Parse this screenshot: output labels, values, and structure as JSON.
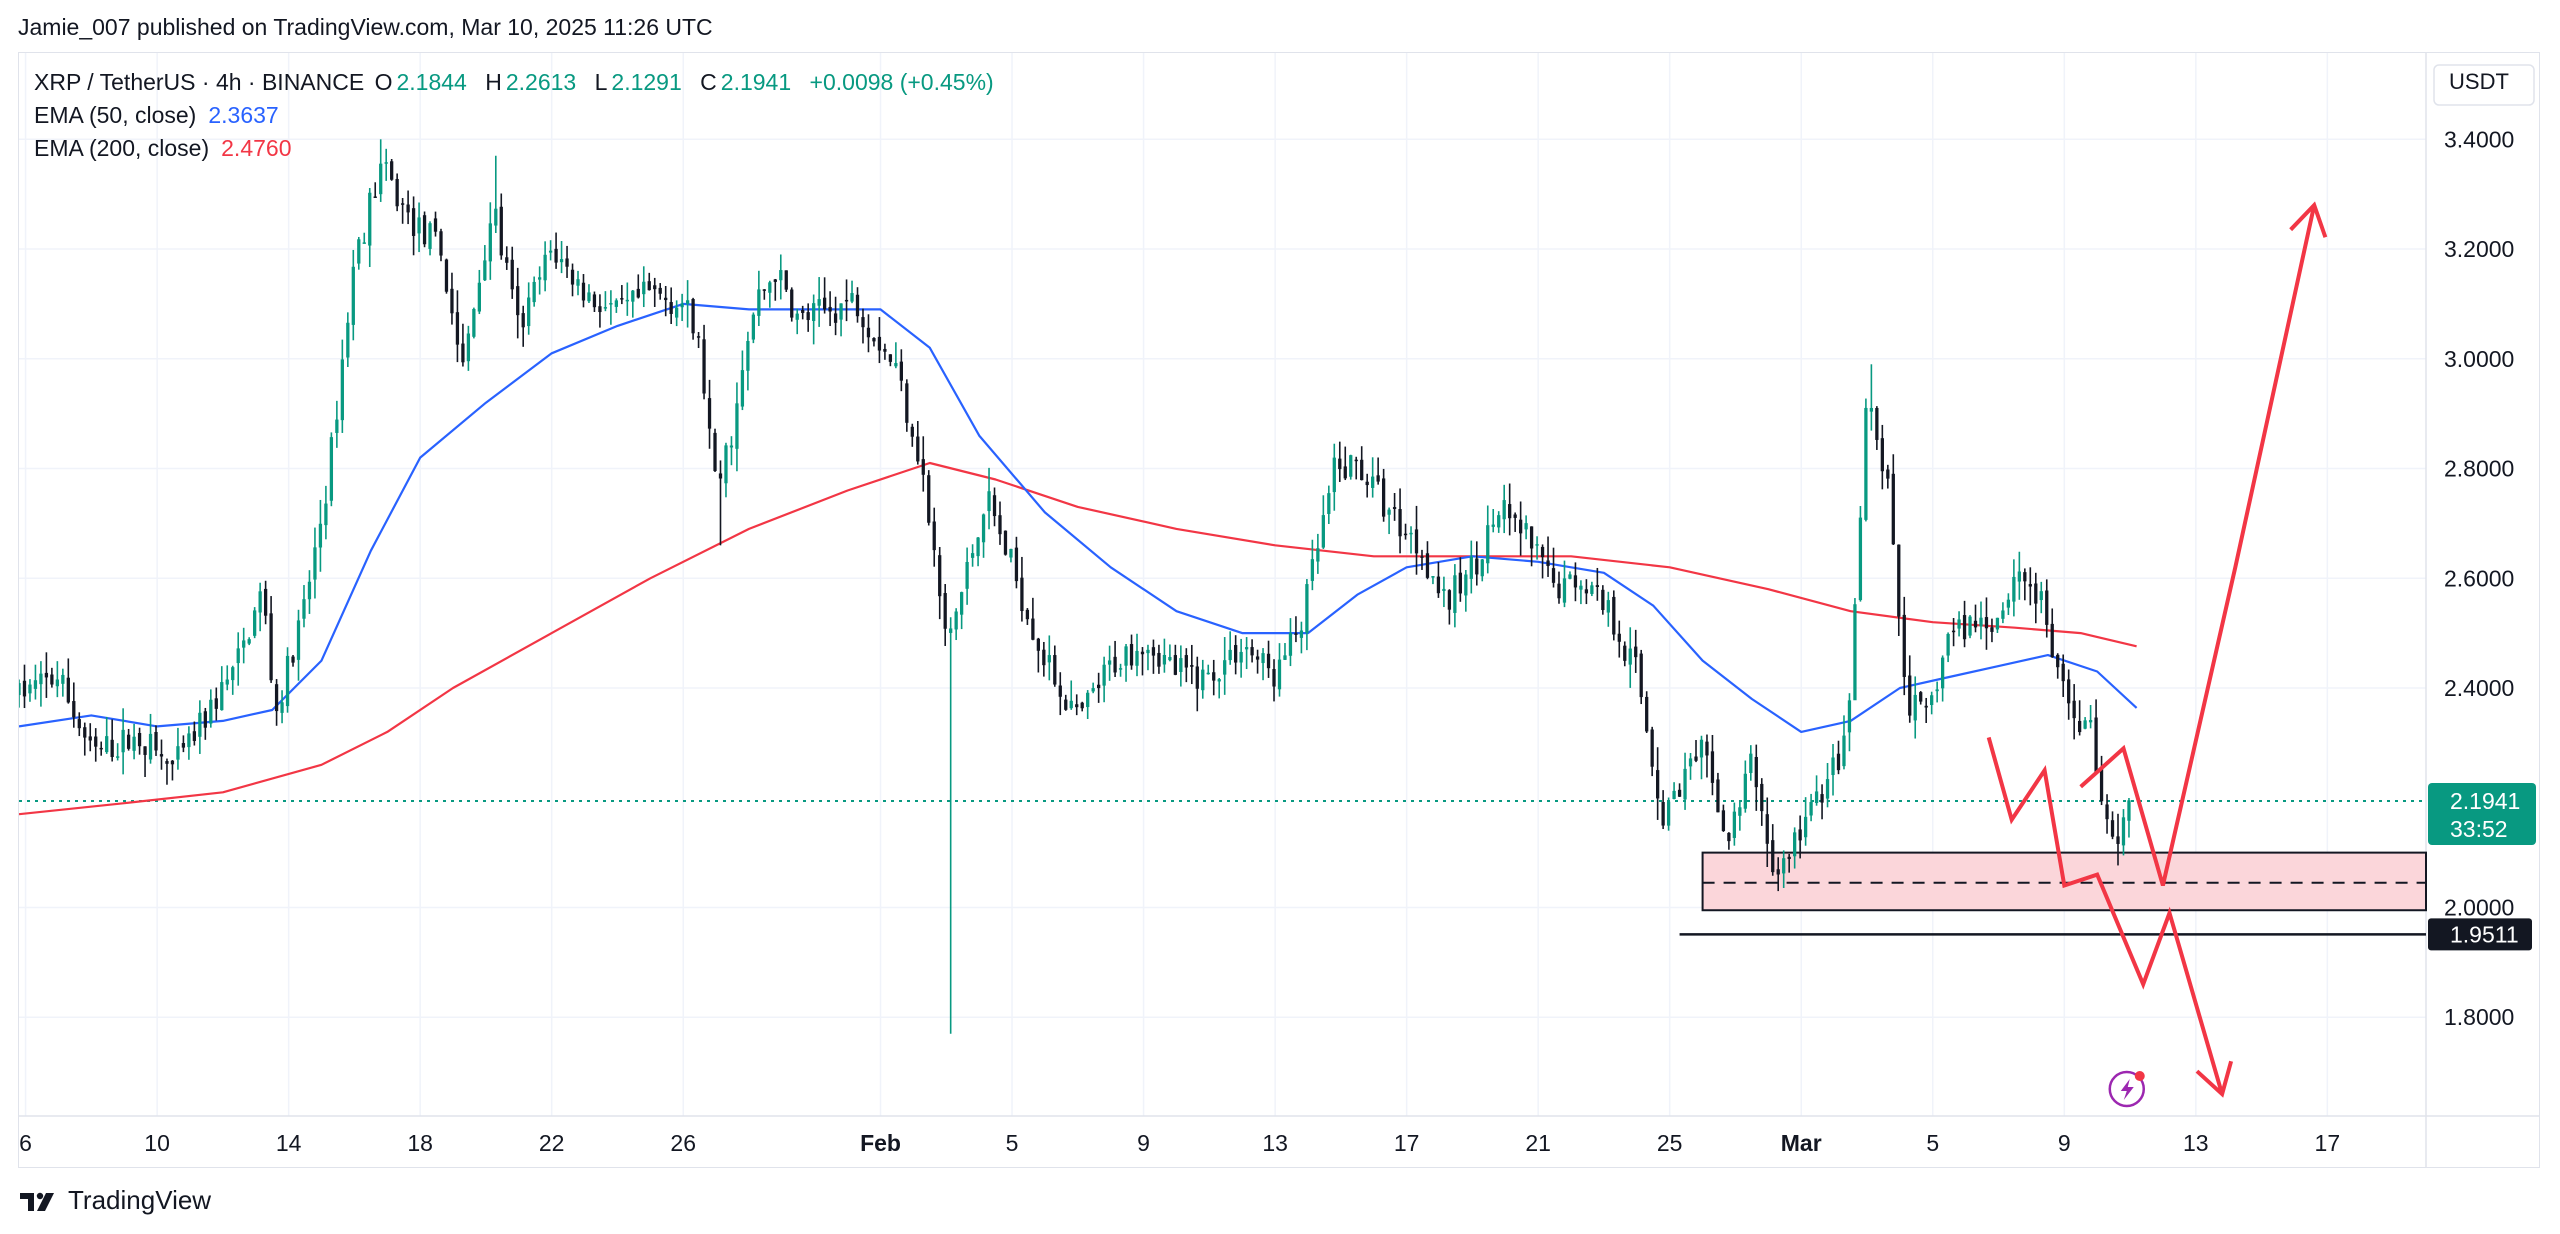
{
  "publisher_line": "Jamie_007 published on TradingView.com, Mar 10, 2025 11:26 UTC",
  "symbol": {
    "name": "XRP / TetherUS · 4h · BINANCE",
    "o_label": "O",
    "o": "2.1844",
    "h_label": "H",
    "h": "2.2613",
    "l_label": "L",
    "l": "2.1291",
    "c_label": "C",
    "c": "2.1941",
    "change": "+0.0098 (+0.45%)"
  },
  "indicators": [
    {
      "label": "EMA (50, close)",
      "value": "2.3637",
      "color": "#2962ff"
    },
    {
      "label": "EMA (200, close)",
      "value": "2.4760",
      "color": "#f23645"
    }
  ],
  "footer": {
    "brand": "TradingView"
  },
  "colors": {
    "up": "#089981",
    "down": "#131722",
    "ema50": "#2962ff",
    "ema200": "#f23645",
    "zone_fill": "#fbd6da",
    "arrow": "#f23645",
    "grid": "#f0f3fa"
  },
  "chart_data": {
    "type": "candlestick",
    "title": "XRP / TetherUS · 4h · BINANCE",
    "currency_label": "USDT",
    "ylim": [
      1.62,
      3.55
    ],
    "y_ticks": [
      "3.4000",
      "3.2000",
      "3.0000",
      "2.8000",
      "2.6000",
      "2.4000",
      "2.0000",
      "1.8000"
    ],
    "y_tick_values": [
      3.4,
      3.2,
      3.0,
      2.8,
      2.6,
      2.4,
      2.0,
      1.8
    ],
    "x_tick_labels": [
      "6",
      "10",
      "14",
      "18",
      "22",
      "26",
      "Feb",
      "5",
      "9",
      "13",
      "17",
      "21",
      "25",
      "Mar",
      "5",
      "9",
      "13",
      "17"
    ],
    "x_tick_days": [
      6,
      10,
      14,
      18,
      22,
      26,
      32,
      36,
      40,
      44,
      48,
      52,
      56,
      60,
      64,
      68,
      72,
      76
    ],
    "x_axis_note": "x in days since Jan 1 2025 (Jan 6 = 6, Feb 1 = 32, Mar 1 = 60)",
    "x_range_days": [
      5.8,
      79.0
    ],
    "price_anchors": [
      [
        5.8,
        2.39
      ],
      [
        7.0,
        2.42
      ],
      [
        8.0,
        2.28
      ],
      [
        9.5,
        2.31
      ],
      [
        10.5,
        2.25
      ],
      [
        11.5,
        2.35
      ],
      [
        12.5,
        2.45
      ],
      [
        13.2,
        2.58
      ],
      [
        13.6,
        2.35
      ],
      [
        14.5,
        2.55
      ],
      [
        15.2,
        2.78
      ],
      [
        16.0,
        3.18
      ],
      [
        16.8,
        3.35
      ],
      [
        17.6,
        3.26
      ],
      [
        18.6,
        3.2
      ],
      [
        19.3,
        2.98
      ],
      [
        20.2,
        3.28
      ],
      [
        21.0,
        3.05
      ],
      [
        22.0,
        3.2
      ],
      [
        23.0,
        3.12
      ],
      [
        24.0,
        3.08
      ],
      [
        25.0,
        3.12
      ],
      [
        26.0,
        3.1
      ],
      [
        26.5,
        3.02
      ],
      [
        27.0,
        2.75
      ],
      [
        27.6,
        2.9
      ],
      [
        28.2,
        3.1
      ],
      [
        28.8,
        3.16
      ],
      [
        29.5,
        3.07
      ],
      [
        30.5,
        3.09
      ],
      [
        31.2,
        3.11
      ],
      [
        31.8,
        3.05
      ],
      [
        32.5,
        2.98
      ],
      [
        33.2,
        2.82
      ],
      [
        34.0,
        2.48
      ],
      [
        34.5,
        2.58
      ],
      [
        35.2,
        2.75
      ],
      [
        36.0,
        2.62
      ],
      [
        37.0,
        2.45
      ],
      [
        38.0,
        2.34
      ],
      [
        39.0,
        2.44
      ],
      [
        40.0,
        2.49
      ],
      [
        41.0,
        2.43
      ],
      [
        42.0,
        2.42
      ],
      [
        43.0,
        2.48
      ],
      [
        44.0,
        2.42
      ],
      [
        44.8,
        2.52
      ],
      [
        45.8,
        2.79
      ],
      [
        46.5,
        2.81
      ],
      [
        47.5,
        2.72
      ],
      [
        48.5,
        2.65
      ],
      [
        49.2,
        2.55
      ],
      [
        50.0,
        2.62
      ],
      [
        50.8,
        2.72
      ],
      [
        51.6,
        2.68
      ],
      [
        52.5,
        2.58
      ],
      [
        53.3,
        2.6
      ],
      [
        54.0,
        2.56
      ],
      [
        55.0,
        2.43
      ],
      [
        55.8,
        2.16
      ],
      [
        56.2,
        2.22
      ],
      [
        57.0,
        2.28
      ],
      [
        57.8,
        2.12
      ],
      [
        58.5,
        2.27
      ],
      [
        59.2,
        2.05
      ],
      [
        59.8,
        2.12
      ],
      [
        60.5,
        2.2
      ],
      [
        61.4,
        2.3
      ],
      [
        62.0,
        2.92
      ],
      [
        62.6,
        2.78
      ],
      [
        63.2,
        2.38
      ],
      [
        63.8,
        2.34
      ],
      [
        64.5,
        2.5
      ],
      [
        65.2,
        2.52
      ],
      [
        66.0,
        2.53
      ],
      [
        66.6,
        2.62
      ],
      [
        67.3,
        2.55
      ],
      [
        68.0,
        2.38
      ],
      [
        68.8,
        2.32
      ],
      [
        69.3,
        2.16
      ],
      [
        69.7,
        2.12
      ],
      [
        70.0,
        2.19
      ]
    ],
    "spike_lows": [
      [
        34.1,
        1.77
      ],
      [
        27.2,
        2.66
      ],
      [
        61.6,
        2.48
      ]
    ],
    "spike_highs": [
      [
        62.2,
        2.99
      ],
      [
        16.8,
        3.4
      ],
      [
        20.3,
        3.37
      ]
    ],
    "ema50_points": [
      [
        5.8,
        2.33
      ],
      [
        8,
        2.35
      ],
      [
        10,
        2.33
      ],
      [
        12,
        2.34
      ],
      [
        13.5,
        2.36
      ],
      [
        15,
        2.45
      ],
      [
        16.5,
        2.65
      ],
      [
        18,
        2.82
      ],
      [
        20,
        2.92
      ],
      [
        22,
        3.01
      ],
      [
        24,
        3.06
      ],
      [
        26,
        3.1
      ],
      [
        28,
        3.09
      ],
      [
        30,
        3.09
      ],
      [
        32,
        3.09
      ],
      [
        33.5,
        3.02
      ],
      [
        35,
        2.86
      ],
      [
        37,
        2.72
      ],
      [
        39,
        2.62
      ],
      [
        41,
        2.54
      ],
      [
        43,
        2.5
      ],
      [
        45,
        2.5
      ],
      [
        46.5,
        2.57
      ],
      [
        48,
        2.62
      ],
      [
        50,
        2.64
      ],
      [
        52,
        2.63
      ],
      [
        54,
        2.61
      ],
      [
        55.5,
        2.55
      ],
      [
        57,
        2.45
      ],
      [
        58.5,
        2.38
      ],
      [
        60,
        2.32
      ],
      [
        61.5,
        2.34
      ],
      [
        63,
        2.4
      ],
      [
        64.5,
        2.42
      ],
      [
        66,
        2.44
      ],
      [
        67.5,
        2.46
      ],
      [
        69,
        2.43
      ],
      [
        70.2,
        2.3637
      ]
    ],
    "ema200_points": [
      [
        5.8,
        2.17
      ],
      [
        9,
        2.19
      ],
      [
        12,
        2.21
      ],
      [
        15,
        2.26
      ],
      [
        17,
        2.32
      ],
      [
        19,
        2.4
      ],
      [
        22,
        2.5
      ],
      [
        25,
        2.6
      ],
      [
        28,
        2.69
      ],
      [
        31,
        2.76
      ],
      [
        33.5,
        2.81
      ],
      [
        35.5,
        2.78
      ],
      [
        38,
        2.73
      ],
      [
        41,
        2.69
      ],
      [
        44,
        2.66
      ],
      [
        47,
        2.64
      ],
      [
        50,
        2.64
      ],
      [
        53,
        2.64
      ],
      [
        56,
        2.62
      ],
      [
        59,
        2.58
      ],
      [
        61.5,
        2.54
      ],
      [
        64,
        2.52
      ],
      [
        66.5,
        2.51
      ],
      [
        68.5,
        2.5
      ],
      [
        70.2,
        2.476
      ]
    ],
    "support_zone": {
      "x_start_day": 57.0,
      "x_end_day": 79.0,
      "low": 1.995,
      "high": 2.1,
      "mid": 2.045
    },
    "support_line": {
      "x_start_day": 56.3,
      "x_end_day": 79.0,
      "value": 1.9511,
      "label": "1.9511"
    },
    "current_price": {
      "value": 2.1941,
      "label": "2.1941",
      "countdown": "33:52"
    },
    "projection_paths": [
      [
        [
          65.7,
          2.31
        ],
        [
          66.4,
          2.16
        ],
        [
          67.4,
          2.25
        ],
        [
          68.0,
          2.04
        ],
        [
          69.0,
          2.06
        ],
        [
          70.4,
          1.86
        ],
        [
          71.2,
          1.99
        ],
        [
          72.8,
          1.66
        ]
      ],
      [
        [
          68.5,
          2.22
        ],
        [
          69.8,
          2.29
        ],
        [
          71.0,
          2.04
        ],
        [
          73.2,
          2.62
        ],
        [
          75.6,
          3.28
        ]
      ]
    ]
  }
}
